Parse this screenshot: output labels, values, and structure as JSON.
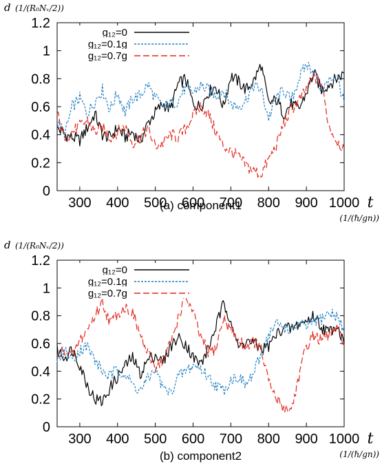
{
  "chart_data": [
    {
      "type": "line",
      "caption": "(a) component1",
      "ylabel_symbol": "d",
      "ylabel_unit": "(1/(R₀Nᵥ/2))",
      "xlabel_symbol": "t",
      "xlabel_unit": "(1/(ℏ/gn))",
      "xlim": [
        240,
        1000
      ],
      "ylim": [
        0,
        1.2
      ],
      "xticks": [
        "300",
        "400",
        "500",
        "600",
        "700",
        "800",
        "900",
        "1000"
      ],
      "yticks": [
        "0",
        "0.2",
        "0.4",
        "0.6",
        "0.8",
        "1",
        "1.2"
      ],
      "legend_position": "top-left",
      "x": [
        240,
        260,
        280,
        300,
        320,
        340,
        360,
        380,
        400,
        420,
        440,
        460,
        480,
        500,
        520,
        540,
        560,
        580,
        600,
        620,
        640,
        660,
        680,
        700,
        720,
        740,
        760,
        780,
        800,
        820,
        840,
        860,
        880,
        900,
        920,
        940,
        960,
        980,
        1000
      ],
      "series": [
        {
          "name": "g₁₂=0",
          "color": "#000000",
          "dash": "solid",
          "values": [
            0.45,
            0.4,
            0.38,
            0.36,
            0.45,
            0.55,
            0.4,
            0.38,
            0.45,
            0.38,
            0.42,
            0.35,
            0.48,
            0.56,
            0.62,
            0.58,
            0.76,
            0.8,
            0.62,
            0.6,
            0.7,
            0.75,
            0.6,
            0.82,
            0.78,
            0.72,
            0.78,
            0.9,
            0.62,
            0.65,
            0.55,
            0.62,
            0.58,
            0.7,
            0.84,
            0.72,
            0.76,
            0.8,
            0.84
          ]
        },
        {
          "name": "g₁₂=0.1g",
          "color": "#1f7fbf",
          "dash": "short",
          "values": [
            0.5,
            0.4,
            0.6,
            0.66,
            0.55,
            0.64,
            0.72,
            0.58,
            0.7,
            0.56,
            0.66,
            0.68,
            0.76,
            0.66,
            0.6,
            0.62,
            0.64,
            0.74,
            0.7,
            0.75,
            0.72,
            0.68,
            0.72,
            0.62,
            0.6,
            0.65,
            0.75,
            0.72,
            0.52,
            0.66,
            0.72,
            0.64,
            0.8,
            0.9,
            0.86,
            0.72,
            0.78,
            0.84,
            0.62
          ]
        },
        {
          "name": "g₁₂=0.7g",
          "color": "#e3261b",
          "dash": "long",
          "values": [
            0.55,
            0.38,
            0.42,
            0.46,
            0.5,
            0.42,
            0.45,
            0.38,
            0.42,
            0.46,
            0.34,
            0.38,
            0.44,
            0.32,
            0.34,
            0.4,
            0.38,
            0.44,
            0.54,
            0.6,
            0.55,
            0.42,
            0.32,
            0.28,
            0.24,
            0.18,
            0.14,
            0.12,
            0.22,
            0.32,
            0.48,
            0.58,
            0.64,
            0.72,
            0.82,
            0.76,
            0.46,
            0.36,
            0.3
          ]
        }
      ]
    },
    {
      "type": "line",
      "caption": "(b) component2",
      "ylabel_symbol": "d",
      "ylabel_unit": "(1/(R₀Nᵥ/2))",
      "xlabel_symbol": "t",
      "xlabel_unit": "(1/(ℏ/gn))",
      "xlim": [
        240,
        1000
      ],
      "ylim": [
        0,
        1.2
      ],
      "xticks": [
        "300",
        "400",
        "500",
        "600",
        "700",
        "800",
        "900",
        "1000"
      ],
      "yticks": [
        "0",
        "0.2",
        "0.4",
        "0.6",
        "0.8",
        "1",
        "1.2"
      ],
      "legend_position": "top-left",
      "x": [
        240,
        260,
        280,
        300,
        320,
        340,
        360,
        380,
        400,
        420,
        440,
        460,
        480,
        500,
        520,
        540,
        560,
        580,
        600,
        620,
        640,
        660,
        680,
        700,
        720,
        740,
        760,
        780,
        800,
        820,
        840,
        860,
        880,
        900,
        920,
        940,
        960,
        980,
        1000
      ],
      "series": [
        {
          "name": "g₁₂=0",
          "color": "#000000",
          "dash": "solid",
          "values": [
            0.55,
            0.5,
            0.56,
            0.45,
            0.3,
            0.2,
            0.18,
            0.28,
            0.36,
            0.44,
            0.5,
            0.38,
            0.48,
            0.52,
            0.46,
            0.58,
            0.64,
            0.6,
            0.5,
            0.45,
            0.56,
            0.72,
            0.88,
            0.78,
            0.56,
            0.62,
            0.6,
            0.56,
            0.58,
            0.66,
            0.72,
            0.7,
            0.74,
            0.76,
            0.8,
            0.72,
            0.68,
            0.74,
            0.6
          ]
        },
        {
          "name": "g₁₂=0.1g",
          "color": "#1f7fbf",
          "dash": "short",
          "values": [
            0.5,
            0.55,
            0.48,
            0.55,
            0.58,
            0.48,
            0.4,
            0.36,
            0.42,
            0.38,
            0.3,
            0.26,
            0.34,
            0.42,
            0.28,
            0.24,
            0.36,
            0.4,
            0.44,
            0.42,
            0.36,
            0.3,
            0.26,
            0.34,
            0.36,
            0.3,
            0.38,
            0.52,
            0.66,
            0.74,
            0.72,
            0.7,
            0.74,
            0.72,
            0.76,
            0.78,
            0.82,
            0.8,
            0.68
          ]
        },
        {
          "name": "g₁₂=0.7g",
          "color": "#e3261b",
          "dash": "long",
          "values": [
            0.5,
            0.56,
            0.5,
            0.62,
            0.7,
            0.8,
            0.9,
            0.75,
            0.82,
            0.86,
            0.82,
            0.66,
            0.52,
            0.44,
            0.48,
            0.6,
            0.78,
            0.94,
            0.82,
            0.64,
            0.54,
            0.56,
            0.78,
            0.7,
            0.62,
            0.58,
            0.62,
            0.56,
            0.32,
            0.2,
            0.14,
            0.12,
            0.36,
            0.58,
            0.66,
            0.62,
            0.66,
            0.7,
            0.62
          ]
        }
      ]
    }
  ]
}
